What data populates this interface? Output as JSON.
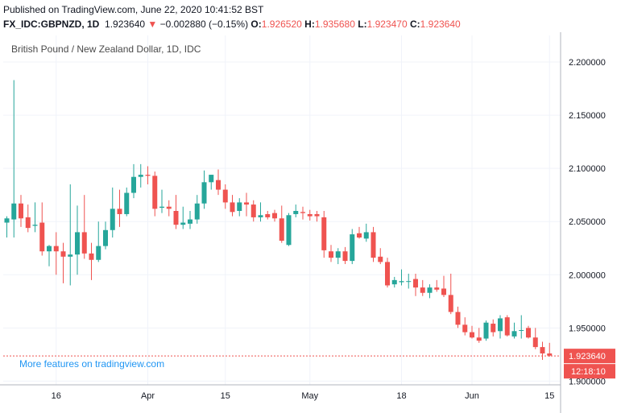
{
  "header": {
    "published": "Published on TradingView.com, June 22, 2020 10:41:52 BST",
    "symbol": "FX_IDC:GBPNZD, 1D",
    "last": "1.923640",
    "change_arrow": "▼",
    "change": "−0.002880 (−0.15%)",
    "open_label": "O:",
    "open": "1.926520",
    "high_label": "H:",
    "high": "1.935680",
    "low_label": "L:",
    "low": "1.923470",
    "close_label": "C:",
    "close": "1.923640"
  },
  "colors": {
    "up": "#26a69a",
    "down": "#ef5350",
    "grid": "#f0f3fa",
    "axis": "#b2b5be",
    "price_line": "#ef5350",
    "promo": "#2196f3"
  },
  "promo_text": "More features on tradingview.com",
  "chart_data": {
    "type": "candlestick",
    "title": "British Pound / New Zealand Dollar, 1D, IDC",
    "ylim": [
      1.895,
      2.225
    ],
    "y_ticks": [
      "2.200000",
      "2.150000",
      "2.100000",
      "2.050000",
      "2.000000",
      "1.950000",
      "1.900000"
    ],
    "y_tick_values": [
      2.2,
      2.15,
      2.1,
      2.05,
      2.0,
      1.95,
      1.9
    ],
    "x_ticks": [
      {
        "label": "16",
        "index": 7
      },
      {
        "label": "Apr",
        "index": 20
      },
      {
        "label": "15",
        "index": 31
      },
      {
        "label": "May",
        "index": 43
      },
      {
        "label": "18",
        "index": 56
      },
      {
        "label": "Jun",
        "index": 66
      },
      {
        "label": "15",
        "index": 77
      }
    ],
    "last_price_label": "1.923640",
    "countdown_label": "12:18:10",
    "last_price": 1.92364,
    "grid": true,
    "candles": [
      {
        "o": 2.049,
        "h": 2.055,
        "l": 2.035,
        "c": 2.053
      },
      {
        "o": 2.052,
        "h": 2.183,
        "l": 2.035,
        "c": 2.067
      },
      {
        "o": 2.067,
        "h": 2.075,
        "l": 2.045,
        "c": 2.053
      },
      {
        "o": 2.054,
        "h": 2.066,
        "l": 2.04,
        "c": 2.044
      },
      {
        "o": 2.046,
        "h": 2.068,
        "l": 2.04,
        "c": 2.047
      },
      {
        "o": 2.049,
        "h": 2.068,
        "l": 2.018,
        "c": 2.022
      },
      {
        "o": 2.022,
        "h": 2.028,
        "l": 2.008,
        "c": 2.027
      },
      {
        "o": 2.027,
        "h": 2.04,
        "l": 2.0,
        "c": 2.022
      },
      {
        "o": 2.022,
        "h": 2.03,
        "l": 1.992,
        "c": 2.017
      },
      {
        "o": 2.017,
        "h": 2.085,
        "l": 1.99,
        "c": 2.019
      },
      {
        "o": 2.019,
        "h": 2.065,
        "l": 2.0,
        "c": 2.04
      },
      {
        "o": 2.04,
        "h": 2.075,
        "l": 2.015,
        "c": 2.02
      },
      {
        "o": 2.02,
        "h": 2.03,
        "l": 1.995,
        "c": 2.014
      },
      {
        "o": 2.014,
        "h": 2.05,
        "l": 2.012,
        "c": 2.027
      },
      {
        "o": 2.027,
        "h": 2.05,
        "l": 2.024,
        "c": 2.042
      },
      {
        "o": 2.042,
        "h": 2.082,
        "l": 2.035,
        "c": 2.062
      },
      {
        "o": 2.062,
        "h": 2.08,
        "l": 2.045,
        "c": 2.057
      },
      {
        "o": 2.057,
        "h": 2.082,
        "l": 2.055,
        "c": 2.077
      },
      {
        "o": 2.077,
        "h": 2.104,
        "l": 2.072,
        "c": 2.092
      },
      {
        "o": 2.092,
        "h": 2.104,
        "l": 2.082,
        "c": 2.094
      },
      {
        "o": 2.094,
        "h": 2.102,
        "l": 2.085,
        "c": 2.093
      },
      {
        "o": 2.093,
        "h": 2.097,
        "l": 2.055,
        "c": 2.062
      },
      {
        "o": 2.063,
        "h": 2.08,
        "l": 2.058,
        "c": 2.064
      },
      {
        "o": 2.064,
        "h": 2.07,
        "l": 2.055,
        "c": 2.062
      },
      {
        "o": 2.06,
        "h": 2.075,
        "l": 2.043,
        "c": 2.047
      },
      {
        "o": 2.047,
        "h": 2.064,
        "l": 2.043,
        "c": 2.049
      },
      {
        "o": 2.048,
        "h": 2.06,
        "l": 2.043,
        "c": 2.052
      },
      {
        "o": 2.052,
        "h": 2.075,
        "l": 2.048,
        "c": 2.067
      },
      {
        "o": 2.067,
        "h": 2.098,
        "l": 2.062,
        "c": 2.087
      },
      {
        "o": 2.087,
        "h": 2.094,
        "l": 2.08,
        "c": 2.094
      },
      {
        "o": 2.089,
        "h": 2.099,
        "l": 2.075,
        "c": 2.08
      },
      {
        "o": 2.08,
        "h": 2.085,
        "l": 2.062,
        "c": 2.068
      },
      {
        "o": 2.068,
        "h": 2.075,
        "l": 2.055,
        "c": 2.059
      },
      {
        "o": 2.06,
        "h": 2.072,
        "l": 2.055,
        "c": 2.068
      },
      {
        "o": 2.068,
        "h": 2.077,
        "l": 2.055,
        "c": 2.066
      },
      {
        "o": 2.066,
        "h": 2.07,
        "l": 2.05,
        "c": 2.054
      },
      {
        "o": 2.054,
        "h": 2.068,
        "l": 2.05,
        "c": 2.056
      },
      {
        "o": 2.057,
        "h": 2.06,
        "l": 2.052,
        "c": 2.054
      },
      {
        "o": 2.058,
        "h": 2.061,
        "l": 2.05,
        "c": 2.053
      },
      {
        "o": 2.053,
        "h": 2.065,
        "l": 2.03,
        "c": 2.032
      },
      {
        "o": 2.028,
        "h": 2.058,
        "l": 2.027,
        "c": 2.056
      },
      {
        "o": 2.057,
        "h": 2.066,
        "l": 2.054,
        "c": 2.06
      },
      {
        "o": 2.059,
        "h": 2.064,
        "l": 2.052,
        "c": 2.058
      },
      {
        "o": 2.057,
        "h": 2.061,
        "l": 2.051,
        "c": 2.055
      },
      {
        "o": 2.057,
        "h": 2.06,
        "l": 2.05,
        "c": 2.055
      },
      {
        "o": 2.054,
        "h": 2.06,
        "l": 2.016,
        "c": 2.023
      },
      {
        "o": 2.022,
        "h": 2.028,
        "l": 2.012,
        "c": 2.016
      },
      {
        "o": 2.016,
        "h": 2.025,
        "l": 2.01,
        "c": 2.022
      },
      {
        "o": 2.022,
        "h": 2.026,
        "l": 2.01,
        "c": 2.013
      },
      {
        "o": 2.013,
        "h": 2.043,
        "l": 2.01,
        "c": 2.038
      },
      {
        "o": 2.039,
        "h": 2.045,
        "l": 2.034,
        "c": 2.035
      },
      {
        "o": 2.034,
        "h": 2.048,
        "l": 2.031,
        "c": 2.04
      },
      {
        "o": 2.04,
        "h": 2.045,
        "l": 2.012,
        "c": 2.016
      },
      {
        "o": 2.017,
        "h": 2.025,
        "l": 2.01,
        "c": 2.012
      },
      {
        "o": 2.012,
        "h": 2.016,
        "l": 1.988,
        "c": 1.99
      },
      {
        "o": 1.991,
        "h": 1.998,
        "l": 1.988,
        "c": 1.995
      },
      {
        "o": 1.993,
        "h": 2.005,
        "l": 1.99,
        "c": 1.994
      },
      {
        "o": 1.994,
        "h": 2.001,
        "l": 1.987,
        "c": 1.994
      },
      {
        "o": 1.996,
        "h": 2.001,
        "l": 1.98,
        "c": 1.988
      },
      {
        "o": 1.988,
        "h": 1.995,
        "l": 1.98,
        "c": 1.983
      },
      {
        "o": 1.983,
        "h": 1.991,
        "l": 1.978,
        "c": 1.988
      },
      {
        "o": 1.988,
        "h": 1.995,
        "l": 1.984,
        "c": 1.986
      },
      {
        "o": 1.987,
        "h": 1.999,
        "l": 1.979,
        "c": 1.981
      },
      {
        "o": 1.981,
        "h": 2.001,
        "l": 1.963,
        "c": 1.965
      },
      {
        "o": 1.965,
        "h": 1.97,
        "l": 1.95,
        "c": 1.953
      },
      {
        "o": 1.953,
        "h": 1.96,
        "l": 1.943,
        "c": 1.946
      },
      {
        "o": 1.946,
        "h": 1.952,
        "l": 1.94,
        "c": 1.941
      },
      {
        "o": 1.941,
        "h": 1.95,
        "l": 1.936,
        "c": 1.938
      },
      {
        "o": 1.94,
        "h": 1.957,
        "l": 1.938,
        "c": 1.955
      },
      {
        "o": 1.954,
        "h": 1.958,
        "l": 1.942,
        "c": 1.946
      },
      {
        "o": 1.947,
        "h": 1.962,
        "l": 1.94,
        "c": 1.959
      },
      {
        "o": 1.96,
        "h": 1.962,
        "l": 1.942,
        "c": 1.943
      },
      {
        "o": 1.942,
        "h": 1.955,
        "l": 1.94,
        "c": 1.947
      },
      {
        "o": 1.948,
        "h": 1.962,
        "l": 1.94,
        "c": 1.948
      },
      {
        "o": 1.95,
        "h": 1.952,
        "l": 1.94,
        "c": 1.941
      },
      {
        "o": 1.941,
        "h": 1.95,
        "l": 1.93,
        "c": 1.932
      },
      {
        "o": 1.932,
        "h": 1.937,
        "l": 1.92,
        "c": 1.926
      },
      {
        "o": 1.926,
        "h": 1.936,
        "l": 1.923,
        "c": 1.924
      }
    ]
  }
}
